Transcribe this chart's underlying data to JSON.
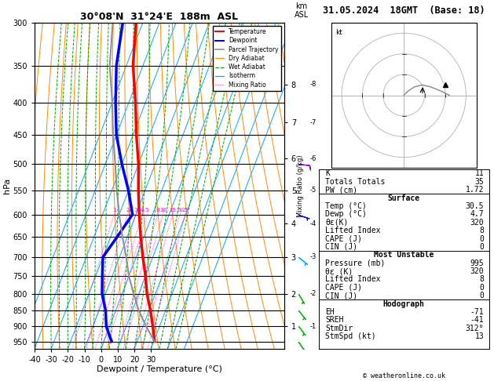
{
  "title_left": "30°08'N  31°24'E  188m  ASL",
  "title_right": "31.05.2024  18GMT  (Base: 18)",
  "xlabel": "Dewpoint / Temperature (°C)",
  "ylabel_left": "hPa",
  "pressure_levels": [
    300,
    350,
    400,
    450,
    500,
    550,
    600,
    650,
    700,
    750,
    800,
    850,
    900,
    950
  ],
  "xmin": -40,
  "xmax": 35,
  "pmin": 300,
  "pmax": 975,
  "skew_factor": 1.0,
  "km_levels": [
    1,
    2,
    3,
    4,
    5,
    6,
    7,
    8
  ],
  "km_pressures": [
    899,
    800,
    700,
    620,
    550,
    490,
    430,
    375
  ],
  "mixing_ratios": [
    1,
    2,
    3,
    4,
    5,
    8,
    10,
    15,
    20,
    25
  ],
  "temp_color": "#ff0000",
  "dewp_color": "#0000ff",
  "parcel_color": "#909090",
  "dry_adiabat_color": "#ff8c00",
  "wet_adiabat_color": "#00aa00",
  "isotherm_color": "#00aaff",
  "mixing_ratio_color": "#ff00ff",
  "bg_color": "#ffffff",
  "stats": {
    "K": 11,
    "Totals_Totals": 35,
    "PW_cm": 1.72,
    "Surface_Temp": 30.5,
    "Surface_Dewp": 4.7,
    "Surface_theta_e": 320,
    "Surface_LiftedIndex": 8,
    "Surface_CAPE": 0,
    "Surface_CIN": 0,
    "MU_Pressure": 995,
    "MU_theta_e": 320,
    "MU_LiftedIndex": 8,
    "MU_CAPE": 0,
    "MU_CIN": 0,
    "Hodo_EH": -71,
    "Hodo_SREH": -41,
    "Hodo_StmDir": 312,
    "Hodo_StmSpd": 13
  }
}
